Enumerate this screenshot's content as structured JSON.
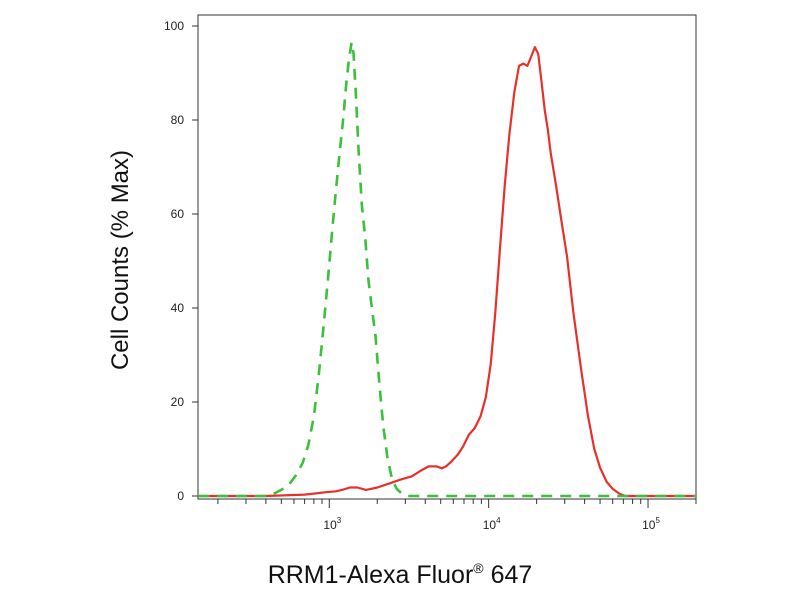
{
  "chart_data": {
    "type": "line",
    "xscale": "log",
    "xlim": [
      150,
      200000
    ],
    "ylim": [
      0,
      100
    ],
    "ylabel": "Cell Counts (% Max)",
    "xlabel_main": "RRM1-Alexa Fluor",
    "xlabel_mark": "®",
    "xlabel_tail": " 647",
    "yticks": [
      0,
      20,
      40,
      60,
      80,
      100
    ],
    "xticks": [
      {
        "base": "10",
        "exp": "3",
        "value": 1000
      },
      {
        "base": "10",
        "exp": "4",
        "value": 10000
      },
      {
        "base": "10",
        "exp": "5",
        "value": 100000
      }
    ],
    "grid": false,
    "series": [
      {
        "color": "#e8302a",
        "style": "solid",
        "x": [
          150,
          400,
          700,
          800,
          950,
          1100,
          1200,
          1350,
          1500,
          1700,
          2000,
          2400,
          2800,
          3300,
          3800,
          4200,
          4700,
          5100,
          5400,
          5900,
          6400,
          6900,
          7500,
          8200,
          8900,
          9600,
          10300,
          11000,
          11800,
          12600,
          13500,
          14500,
          15500,
          16500,
          17500,
          18500,
          19500,
          20500,
          21500,
          22500,
          23500,
          24500,
          26500,
          28500,
          31000,
          34000,
          38000,
          42000,
          46000,
          50000,
          55000,
          60000,
          66000,
          72000,
          200000
        ],
        "y": [
          0,
          0,
          0.3,
          0.5,
          0.8,
          1,
          1.3,
          1.8,
          1.8,
          1.3,
          1.8,
          2.7,
          3.5,
          4.2,
          5.5,
          6.3,
          6.3,
          5.9,
          6.3,
          7.5,
          8.8,
          10.5,
          13,
          14.5,
          17,
          21,
          28,
          39,
          53,
          66,
          77,
          86,
          91.5,
          92,
          91.5,
          93.5,
          95.5,
          94,
          88,
          82,
          78,
          73,
          66,
          59,
          51,
          39,
          27,
          17,
          10,
          6,
          3,
          1.5,
          0.5,
          0,
          0
        ]
      },
      {
        "color": "#3cc03c",
        "style": "dashed",
        "x": [
          150,
          400,
          450,
          500,
          560,
          620,
          680,
          740,
          800,
          860,
          920,
          980,
          1040,
          1100,
          1160,
          1220,
          1280,
          1330,
          1380,
          1420,
          1470,
          1530,
          1600,
          1680,
          1760,
          1850,
          1950,
          2060,
          2180,
          2320,
          2480,
          2650,
          2850,
          3100,
          200000
        ],
        "y": [
          0,
          0,
          0.5,
          1.3,
          2.5,
          4.5,
          7,
          11,
          17,
          26,
          36,
          46,
          56,
          65,
          73,
          80,
          88,
          93,
          96.5,
          94,
          85,
          73,
          62,
          55,
          46,
          40,
          34,
          24,
          15,
          8,
          3.5,
          1.5,
          0.5,
          0,
          0
        ]
      }
    ]
  }
}
